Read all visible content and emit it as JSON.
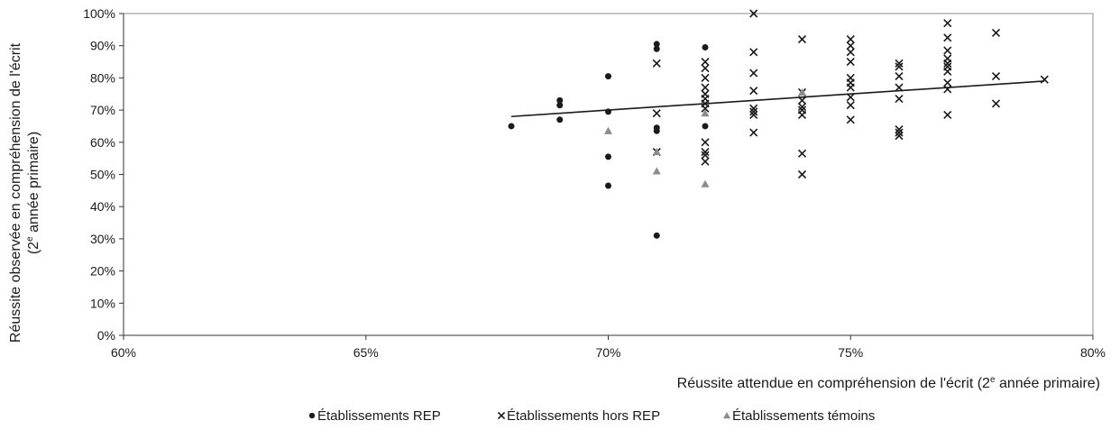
{
  "chart_data": {
    "type": "scatter",
    "xlabel": "Réussite attendue en compréhension de l'écrit (2e année primaire)",
    "ylabel_line1": "Réussite observée en compréhension de l'écrit",
    "ylabel_line2": "(2e année primaire)",
    "xlim": [
      60,
      80
    ],
    "ylim": [
      0,
      100
    ],
    "x_ticks": [
      60,
      65,
      70,
      75,
      80
    ],
    "y_ticks": [
      0,
      10,
      20,
      30,
      40,
      50,
      60,
      70,
      80,
      90,
      100
    ],
    "tick_suffix": "%",
    "grid": false,
    "legend_position": "bottom-center",
    "series": [
      {
        "name": "Établissements REP",
        "marker": "circle",
        "color": "#1a1a1a",
        "points": [
          [
            68,
            65
          ],
          [
            69,
            73
          ],
          [
            69,
            71.5
          ],
          [
            69,
            67
          ],
          [
            70,
            80.5
          ],
          [
            70,
            69.5
          ],
          [
            70,
            55.5
          ],
          [
            70,
            46.5
          ],
          [
            71,
            90.5
          ],
          [
            71,
            89
          ],
          [
            71,
            64.5
          ],
          [
            71,
            63.5
          ],
          [
            71,
            31
          ],
          [
            72,
            89.5
          ],
          [
            72,
            65
          ]
        ]
      },
      {
        "name": "Établissements hors REP",
        "marker": "x",
        "color": "#1a1a1a",
        "points": [
          [
            71,
            84.5
          ],
          [
            71,
            69
          ],
          [
            71,
            57
          ],
          [
            72,
            85
          ],
          [
            72,
            83
          ],
          [
            72,
            80
          ],
          [
            72,
            77
          ],
          [
            72,
            75
          ],
          [
            72,
            73.5
          ],
          [
            72,
            72
          ],
          [
            72,
            70.5
          ],
          [
            72,
            60
          ],
          [
            72,
            57
          ],
          [
            72,
            56
          ],
          [
            72,
            54
          ],
          [
            73,
            100
          ],
          [
            73,
            88
          ],
          [
            73,
            81.5
          ],
          [
            73,
            76
          ],
          [
            73,
            70.5
          ],
          [
            73,
            69.5
          ],
          [
            73,
            68.5
          ],
          [
            73,
            63
          ],
          [
            74,
            92
          ],
          [
            74,
            75.5
          ],
          [
            74,
            73
          ],
          [
            74,
            71
          ],
          [
            74,
            70
          ],
          [
            74,
            68.5
          ],
          [
            74,
            56.5
          ],
          [
            74,
            50
          ],
          [
            75,
            92
          ],
          [
            75,
            90
          ],
          [
            75,
            88
          ],
          [
            75,
            85
          ],
          [
            75,
            80
          ],
          [
            75,
            78.5
          ],
          [
            75,
            77
          ],
          [
            75,
            74
          ],
          [
            75,
            71.5
          ],
          [
            75,
            67
          ],
          [
            76,
            84.5
          ],
          [
            76,
            83.5
          ],
          [
            76,
            80.5
          ],
          [
            76,
            77
          ],
          [
            76,
            73.5
          ],
          [
            76,
            64
          ],
          [
            76,
            63
          ],
          [
            76,
            62
          ],
          [
            77,
            97
          ],
          [
            77,
            92.5
          ],
          [
            77,
            88.5
          ],
          [
            77,
            86
          ],
          [
            77,
            84.5
          ],
          [
            77,
            83.5
          ],
          [
            77,
            82
          ],
          [
            77,
            78.5
          ],
          [
            77,
            76.5
          ],
          [
            77,
            68.5
          ],
          [
            78,
            94
          ],
          [
            78,
            80.5
          ],
          [
            78,
            72
          ],
          [
            79,
            79.5
          ]
        ]
      },
      {
        "name": "Établissements témoins",
        "marker": "triangle",
        "color": "#8c8c8c",
        "points": [
          [
            70,
            63.5
          ],
          [
            71,
            57
          ],
          [
            71,
            51
          ],
          [
            72,
            69
          ],
          [
            72,
            47
          ],
          [
            74,
            75.5
          ]
        ]
      }
    ],
    "trendline": {
      "x": [
        68,
        79
      ],
      "y": [
        68,
        79
      ]
    }
  }
}
